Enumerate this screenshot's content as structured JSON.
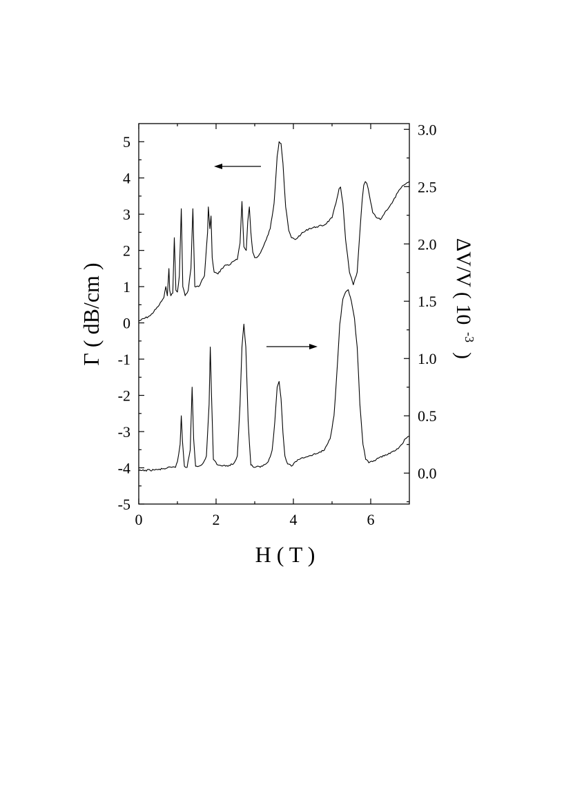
{
  "chart_data": {
    "type": "line",
    "xlabel": "H ( T )",
    "ylabel_left": "Γ ( dB/cm )",
    "ylabel_right_main": "ΔV/V ( 10",
    "ylabel_right_exp": "-3",
    "ylabel_right_close": ")",
    "xlim": [
      0,
      7
    ],
    "ylim_left": [
      -5,
      5.5
    ],
    "ylim_right": [
      -0.27,
      3.05
    ],
    "x_ticks": [
      {
        "value": 0,
        "label": "0"
      },
      {
        "value": 2,
        "label": "2"
      },
      {
        "value": 4,
        "label": "4"
      },
      {
        "value": 6,
        "label": "6"
      }
    ],
    "y_left_ticks": [
      {
        "value": 5,
        "label": "5"
      },
      {
        "value": 4,
        "label": "4"
      },
      {
        "value": 3,
        "label": "3"
      },
      {
        "value": 2,
        "label": "2"
      },
      {
        "value": 1,
        "label": "1"
      },
      {
        "value": 0,
        "label": "0"
      },
      {
        "value": -1,
        "label": "-1"
      },
      {
        "value": -2,
        "label": "-2"
      },
      {
        "value": -3,
        "label": "-3"
      },
      {
        "value": -4,
        "label": "-4"
      },
      {
        "value": -5,
        "label": "-5"
      }
    ],
    "y_right_ticks": [
      {
        "value": 3.0,
        "label": "3.0"
      },
      {
        "value": 2.5,
        "label": "2.5"
      },
      {
        "value": 2.0,
        "label": "2.0"
      },
      {
        "value": 1.5,
        "label": "1.5"
      },
      {
        "value": 1.0,
        "label": "1.0"
      },
      {
        "value": 0.5,
        "label": "0.5"
      },
      {
        "value": 0.0,
        "label": "0.0"
      }
    ],
    "series": [
      {
        "axis": "left",
        "direction_arrow": "left",
        "x": [
          0.0,
          0.3,
          0.5,
          0.65,
          0.7,
          0.74,
          0.78,
          0.8,
          0.83,
          0.88,
          0.92,
          0.96,
          1.0,
          1.05,
          1.1,
          1.14,
          1.2,
          1.28,
          1.35,
          1.4,
          1.45,
          1.55,
          1.7,
          1.78,
          1.8,
          1.84,
          1.87,
          1.9,
          1.95,
          2.05,
          2.15,
          2.25,
          2.35,
          2.45,
          2.55,
          2.62,
          2.67,
          2.72,
          2.78,
          2.82,
          2.86,
          2.9,
          2.95,
          3.0,
          3.05,
          3.1,
          3.2,
          3.3,
          3.4,
          3.5,
          3.58,
          3.63,
          3.68,
          3.73,
          3.8,
          3.88,
          3.95,
          4.05,
          4.2,
          4.4,
          4.6,
          4.8,
          5.0,
          5.1,
          5.18,
          5.22,
          5.28,
          5.35,
          5.45,
          5.55,
          5.65,
          5.72,
          5.78,
          5.82,
          5.86,
          5.9,
          5.97,
          6.05,
          6.15,
          6.25,
          6.4,
          6.55,
          6.7,
          6.85,
          7.0
        ],
        "y": [
          0.05,
          0.2,
          0.45,
          0.7,
          1.0,
          0.75,
          1.5,
          0.9,
          0.75,
          0.82,
          2.35,
          0.9,
          0.85,
          1.3,
          3.15,
          1.0,
          0.75,
          0.9,
          1.5,
          3.15,
          1.0,
          1.0,
          1.3,
          2.5,
          3.2,
          2.6,
          2.95,
          1.8,
          1.4,
          1.35,
          1.5,
          1.6,
          1.6,
          1.7,
          1.75,
          2.2,
          3.35,
          2.1,
          2.0,
          2.8,
          3.2,
          2.5,
          1.95,
          1.8,
          1.8,
          1.85,
          2.05,
          2.3,
          2.6,
          3.3,
          4.6,
          5.0,
          4.95,
          4.4,
          3.2,
          2.55,
          2.35,
          2.3,
          2.45,
          2.6,
          2.65,
          2.7,
          2.9,
          3.3,
          3.7,
          3.75,
          3.3,
          2.3,
          1.4,
          1.05,
          1.4,
          2.5,
          3.4,
          3.8,
          3.9,
          3.85,
          3.5,
          3.05,
          2.9,
          2.85,
          3.1,
          3.3,
          3.6,
          3.8,
          3.9
        ]
      },
      {
        "axis": "right",
        "direction_arrow": "right",
        "x": [
          0.0,
          0.5,
          0.85,
          0.95,
          1.0,
          1.07,
          1.1,
          1.13,
          1.18,
          1.25,
          1.33,
          1.38,
          1.42,
          1.47,
          1.55,
          1.65,
          1.75,
          1.82,
          1.85,
          1.88,
          1.93,
          2.05,
          2.25,
          2.45,
          2.55,
          2.62,
          2.67,
          2.72,
          2.77,
          2.83,
          2.9,
          3.0,
          3.2,
          3.35,
          3.45,
          3.52,
          3.58,
          3.63,
          3.68,
          3.73,
          3.78,
          3.85,
          3.95,
          4.05,
          4.2,
          4.4,
          4.6,
          4.8,
          4.95,
          5.05,
          5.12,
          5.2,
          5.28,
          5.35,
          5.42,
          5.5,
          5.58,
          5.65,
          5.72,
          5.8,
          5.87,
          5.95,
          6.05,
          6.2,
          6.35,
          6.5,
          6.65,
          6.8,
          6.9,
          7.0
        ],
        "y": [
          0.02,
          0.03,
          0.05,
          0.05,
          0.1,
          0.25,
          0.5,
          0.28,
          0.06,
          0.05,
          0.2,
          0.75,
          0.3,
          0.06,
          0.06,
          0.08,
          0.15,
          0.6,
          1.1,
          0.7,
          0.12,
          0.07,
          0.06,
          0.08,
          0.15,
          0.6,
          1.1,
          1.3,
          1.1,
          0.45,
          0.07,
          0.05,
          0.06,
          0.1,
          0.2,
          0.45,
          0.75,
          0.8,
          0.65,
          0.35,
          0.15,
          0.08,
          0.06,
          0.1,
          0.13,
          0.15,
          0.17,
          0.2,
          0.3,
          0.5,
          0.85,
          1.3,
          1.52,
          1.58,
          1.6,
          1.5,
          1.35,
          1.1,
          0.6,
          0.25,
          0.12,
          0.09,
          0.1,
          0.13,
          0.15,
          0.17,
          0.2,
          0.25,
          0.3,
          0.32
        ]
      }
    ]
  }
}
